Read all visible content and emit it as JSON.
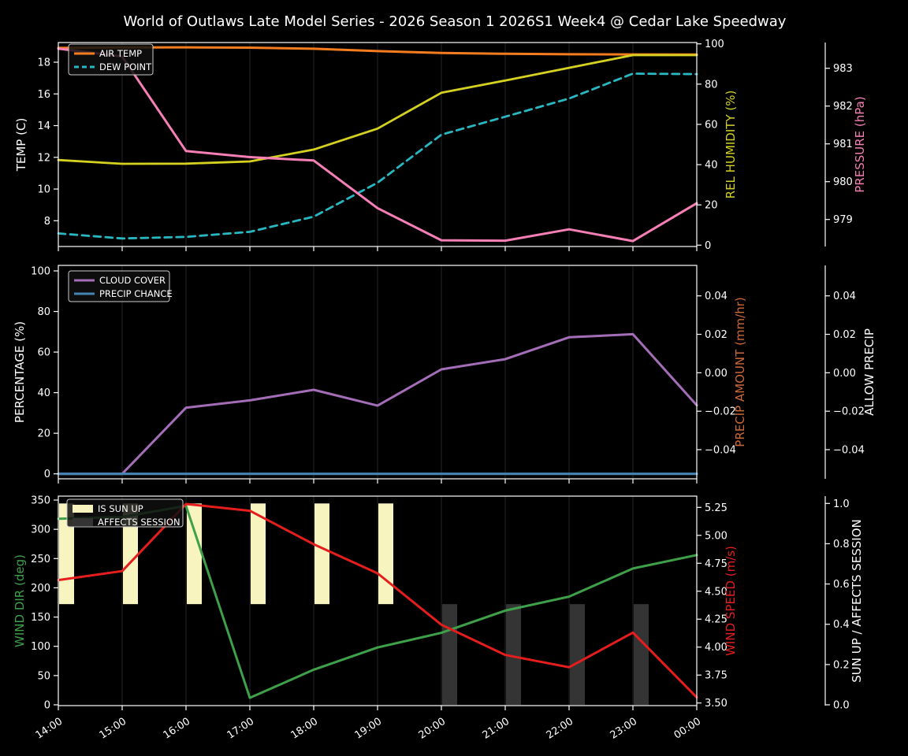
{
  "title": "World of Outlaws Late Model Series - 2026 Season 1 2026S1 Week4 @ Cedar Lake Speedway",
  "colors": {
    "background": "#000000",
    "foreground": "#ffffff",
    "grid": "#262626",
    "air_temp": "#f57d1f",
    "dew_point": "#29b8c2",
    "rel_humidity": "#d4d121",
    "pressure": "#f67fb6",
    "cloud_cover": "#a46db8",
    "precip_chance": "#4684b4",
    "precip_amount": "#cd6839",
    "wind_dir": "#3fa04a",
    "wind_speed": "#e51d1d",
    "sun_up_bar": "#f7f4bf",
    "affects_session_bar": "#343434"
  },
  "x_axis": {
    "hours": [
      14,
      15,
      16,
      17,
      18,
      19,
      20,
      21,
      22,
      23,
      24
    ],
    "tick_labels": [
      "14:00",
      "15:00",
      "16:00",
      "17:00",
      "18:00",
      "19:00",
      "20:00",
      "21:00",
      "22:00",
      "23:00",
      "00:00"
    ]
  },
  "chart_data": [
    {
      "type": "line",
      "panel": "temperature-humidity-pressure",
      "axes": {
        "left": {
          "label": "TEMP (C)",
          "color": "#ffffff",
          "ticks": [
            18,
            16,
            14,
            12,
            10,
            8
          ],
          "tick_labels": [
            "18",
            "16",
            "14",
            "12",
            "10",
            "8"
          ]
        },
        "right1": {
          "label": "REL HUMIDITY (%)",
          "color": "#d4d121",
          "ticks": [
            100,
            80,
            60,
            40,
            20,
            0
          ],
          "tick_labels": [
            "100",
            "80",
            "60",
            "40",
            "20",
            "0"
          ]
        },
        "right2": {
          "label": "PRESSURE (hPa)",
          "color": "#f67fb6",
          "detached": true,
          "ticks": [
            983,
            982,
            981,
            980,
            979
          ],
          "tick_labels": [
            "983",
            "982",
            "981",
            "980",
            "979"
          ]
        }
      },
      "legend": [
        {
          "label": "AIR TEMP",
          "swatch": "line",
          "color": "#f57d1f",
          "dash": "solid"
        },
        {
          "label": "DEW POINT",
          "swatch": "line",
          "color": "#29b8c2",
          "dash": "dashed"
        }
      ],
      "series": [
        {
          "name": "AIR TEMP",
          "axis": "left",
          "color": "#f57d1f",
          "dash": "solid",
          "width": 3,
          "values": [
            18.9,
            18.93,
            18.94,
            18.92,
            18.85,
            18.7,
            18.58,
            18.53,
            18.5,
            18.49,
            18.48
          ]
        },
        {
          "name": "DEW POINT",
          "axis": "left",
          "color": "#29b8c2",
          "dash": "dashed",
          "width": 2.8,
          "values": [
            7.2,
            6.88,
            6.98,
            7.3,
            8.26,
            10.4,
            13.43,
            14.56,
            15.71,
            17.28,
            17.25
          ]
        },
        {
          "name": "REL HUMIDITY",
          "axis": "right1",
          "color": "#d4d121",
          "dash": "solid",
          "width": 2.8,
          "values": [
            42.3,
            40.4,
            40.5,
            41.6,
            47.5,
            57.9,
            75.7,
            81.8,
            88.1,
            94.4,
            94.4
          ]
        },
        {
          "name": "PRESSURE",
          "axis": "right2",
          "color": "#f67fb6",
          "dash": "solid",
          "width": 3,
          "values": [
            983.52,
            983.31,
            980.81,
            980.65,
            980.56,
            979.3,
            978.45,
            978.44,
            978.74,
            978.43,
            979.43
          ]
        }
      ]
    },
    {
      "type": "line",
      "panel": "cloud-precip",
      "axes": {
        "left": {
          "label": "PERCENTAGE (%)",
          "color": "#ffffff",
          "ticks": [
            100,
            80,
            60,
            40,
            20,
            0
          ],
          "tick_labels": [
            "100",
            "80",
            "60",
            "40",
            "20",
            "0"
          ]
        },
        "right1": {
          "label": "PRECIP AMOUNT (mm/hr)",
          "color": "#cd6839",
          "ticks": [
            0.04,
            0.02,
            0,
            -0.02,
            -0.04
          ],
          "tick_labels": [
            "0.04",
            "0.02",
            "0.00",
            "−0.02",
            "−0.04"
          ]
        },
        "right2": {
          "label": "ALLOW PRECIP",
          "color": "#ffffff",
          "detached": true,
          "ticks": [
            0.04,
            0.02,
            0,
            -0.02,
            -0.04
          ],
          "tick_labels": [
            "0.04",
            "0.02",
            "0.00",
            "−0.02",
            "−0.04"
          ]
        }
      },
      "legend": [
        {
          "label": "CLOUD COVER",
          "swatch": "line",
          "color": "#a46db8",
          "dash": "solid"
        },
        {
          "label": "PRECIP CHANCE",
          "swatch": "line",
          "color": "#4684b4",
          "dash": "solid"
        }
      ],
      "series": [
        {
          "name": "CLOUD COVER",
          "axis": "left",
          "color": "#a46db8",
          "dash": "solid",
          "width": 3,
          "values": [
            0,
            0,
            32.6,
            36.2,
            41.4,
            33.6,
            51.5,
            56.5,
            67.3,
            68.8,
            33.8
          ]
        },
        {
          "name": "PRECIP CHANCE",
          "axis": "left",
          "color": "#4684b4",
          "dash": "solid",
          "width": 3.2,
          "values": [
            0,
            0,
            0,
            0,
            0,
            0,
            0,
            0,
            0,
            0,
            0
          ]
        }
      ]
    },
    {
      "type": "line",
      "panel": "wind-sun",
      "axes": {
        "left": {
          "label": "WIND DIR (deg)",
          "color": "#3fa04a",
          "ticks": [
            350,
            300,
            250,
            200,
            150,
            100,
            50,
            0
          ],
          "tick_labels": [
            "350",
            "300",
            "250",
            "200",
            "150",
            "100",
            "50",
            "0"
          ]
        },
        "right1": {
          "label": "WIND SPEED (m/s)",
          "color": "#e51d1d",
          "ticks": [
            5.25,
            5.0,
            4.75,
            4.5,
            4.25,
            4.0,
            3.75,
            3.5
          ],
          "tick_labels": [
            "5.25",
            "5.00",
            "4.75",
            "4.50",
            "4.25",
            "4.00",
            "3.75",
            "3.50"
          ]
        },
        "right2": {
          "label": "SUN UP / AFFECTS SESSION",
          "color": "#ffffff",
          "detached": true,
          "ticks": [
            1.0,
            0.8,
            0.6,
            0.4,
            0.2,
            0.0
          ],
          "tick_labels": [
            "1.0",
            "0.8",
            "0.6",
            "0.4",
            "0.2",
            "0.0"
          ]
        }
      },
      "legend": [
        {
          "label": "IS SUN UP",
          "swatch": "patch",
          "color": "#f7f4bf"
        },
        {
          "label": "AFFECTS SESSION",
          "swatch": "patch",
          "color": "#343434"
        }
      ],
      "bars": [
        {
          "name": "IS SUN UP",
          "color": "#f7f4bf",
          "axis": "right2",
          "span": [
            0.5,
            1.0
          ],
          "hours": [
            14,
            15,
            16,
            17,
            18,
            19
          ]
        },
        {
          "name": "AFFECTS SESSION",
          "color": "#343434",
          "axis": "right2",
          "span": [
            0.0,
            0.5
          ],
          "hours": [
            20,
            21,
            22,
            23
          ]
        }
      ],
      "series": [
        {
          "name": "WIND DIR",
          "axis": "left",
          "color": "#3fa04a",
          "dash": "solid",
          "width": 3,
          "values": [
            318,
            321,
            340,
            12,
            60,
            98,
            123,
            161,
            185,
            233,
            256
          ]
        },
        {
          "name": "WIND SPEED",
          "axis": "right1",
          "color": "#e51d1d",
          "dash": "solid",
          "width": 3,
          "values": [
            4.6,
            4.68,
            5.28,
            5.22,
            4.92,
            4.66,
            4.2,
            3.93,
            3.82,
            4.13,
            3.55
          ]
        }
      ]
    }
  ]
}
